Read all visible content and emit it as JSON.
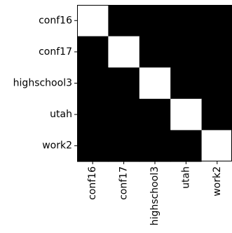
{
  "chart_data": {
    "type": "heatmap",
    "row_labels": [
      "conf16",
      "conf17",
      "highschool3",
      "utah",
      "work2"
    ],
    "col_labels": [
      "conf16",
      "conf17",
      "highschool3",
      "utah",
      "work2"
    ],
    "values": [
      [
        1,
        0,
        0,
        0,
        0
      ],
      [
        0,
        1,
        0,
        0,
        0
      ],
      [
        0,
        0,
        1,
        0,
        0
      ],
      [
        0,
        0,
        0,
        1,
        0
      ],
      [
        0,
        0,
        0,
        0,
        1
      ]
    ],
    "colormap": {
      "low": "#000000",
      "high": "#ffffff"
    },
    "title": "",
    "xlabel": "",
    "ylabel": "",
    "grid": false,
    "legend": "none"
  }
}
